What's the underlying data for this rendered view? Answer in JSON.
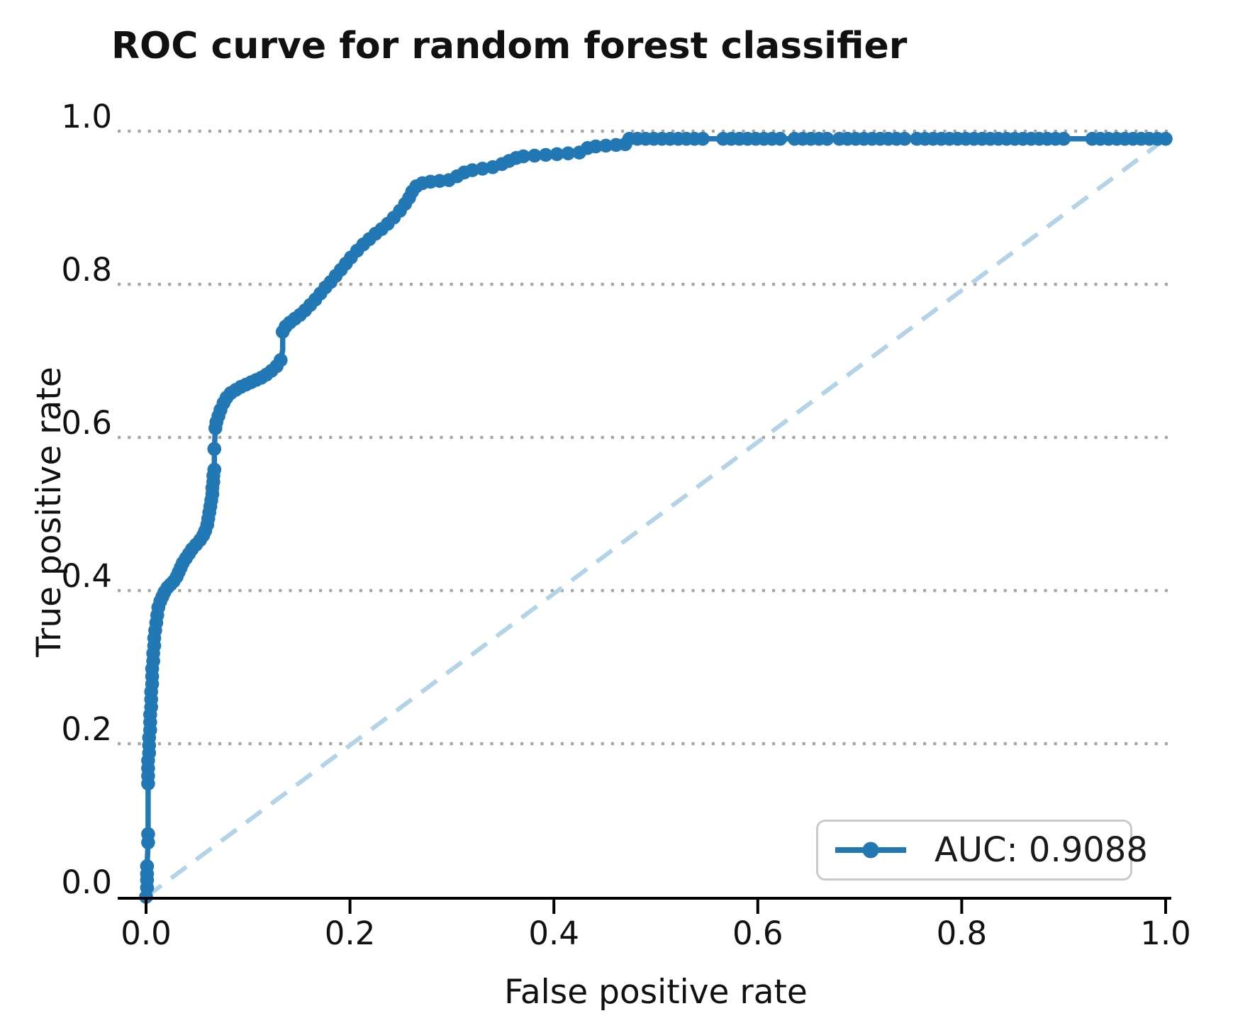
{
  "chart_data": {
    "type": "line",
    "subtype": "roc_curve",
    "title": "ROC curve for random forest classifier",
    "xlabel": "False positive rate",
    "ylabel": "True positive rate",
    "x_tick_labels": [
      "0.0",
      "0.2",
      "0.4",
      "0.6",
      "0.8",
      "1.0"
    ],
    "x_tick_values": [
      0,
      0.2,
      0.4,
      0.6,
      0.8,
      1.0
    ],
    "y_tick_labels": [
      "0.0",
      "0.2",
      "0.4",
      "0.6",
      "0.8",
      "1.0"
    ],
    "y_tick_values": [
      0,
      0.2,
      0.4,
      0.6,
      0.8,
      1.0
    ],
    "xlim": [
      -0.028,
      1.005
    ],
    "ylim": [
      0,
      1.0
    ],
    "grid": "horizontal dotted",
    "legend": {
      "label": "AUC: 0.9088",
      "position": "lower right"
    },
    "auc": 0.9088,
    "colors": {
      "roc_curve": "#2277b5",
      "chance_line": "#b3d3e9",
      "grid": "#a6a6a6",
      "axis": "#000000",
      "text": "#1a1a1a",
      "legend_border": "#c9c9c9",
      "background": "#ffffff"
    },
    "series": [
      {
        "name": "AUC: 0.9088",
        "kind": "roc",
        "marker": "circle",
        "points": [
          [
            0.0,
            0.0,
            1
          ],
          [
            0.001,
            0.012,
            1
          ],
          [
            0.001,
            0.022,
            1
          ],
          [
            0.001,
            0.03,
            1
          ],
          [
            0.001,
            0.04,
            1
          ],
          [
            0.002,
            0.071,
            1
          ],
          [
            0.002,
            0.082,
            1
          ],
          [
            0.002,
            0.148,
            1
          ],
          [
            0.002,
            0.158,
            1
          ],
          [
            0.002,
            0.168,
            1
          ],
          [
            0.002,
            0.178,
            1
          ],
          [
            0.003,
            0.188,
            1
          ],
          [
            0.003,
            0.198,
            1
          ],
          [
            0.003,
            0.208,
            1
          ],
          [
            0.004,
            0.218,
            1
          ],
          [
            0.004,
            0.228,
            1
          ],
          [
            0.004,
            0.238,
            1
          ],
          [
            0.005,
            0.248,
            1
          ],
          [
            0.005,
            0.258,
            1
          ],
          [
            0.005,
            0.268,
            1
          ],
          [
            0.006,
            0.278,
            1
          ],
          [
            0.006,
            0.288,
            1
          ],
          [
            0.006,
            0.298,
            1
          ],
          [
            0.007,
            0.308,
            1
          ],
          [
            0.007,
            0.318,
            1
          ],
          [
            0.008,
            0.328,
            1
          ],
          [
            0.008,
            0.338,
            1
          ],
          [
            0.009,
            0.348,
            1
          ],
          [
            0.01,
            0.358,
            1
          ],
          [
            0.011,
            0.368,
            1
          ],
          [
            0.012,
            0.378,
            1
          ],
          [
            0.014,
            0.386,
            1
          ],
          [
            0.016,
            0.392,
            1
          ],
          [
            0.018,
            0.398,
            1
          ],
          [
            0.021,
            0.404,
            1
          ],
          [
            0.024,
            0.408,
            1
          ],
          [
            0.027,
            0.412,
            1
          ],
          [
            0.03,
            0.418,
            1
          ],
          [
            0.032,
            0.424,
            1
          ],
          [
            0.034,
            0.43,
            1
          ],
          [
            0.036,
            0.436,
            1
          ],
          [
            0.039,
            0.442,
            1
          ],
          [
            0.042,
            0.448,
            1
          ],
          [
            0.045,
            0.454,
            1
          ],
          [
            0.049,
            0.46,
            1
          ],
          [
            0.053,
            0.466,
            1
          ],
          [
            0.056,
            0.472,
            1
          ],
          [
            0.058,
            0.478,
            1
          ],
          [
            0.06,
            0.486,
            1
          ],
          [
            0.061,
            0.494,
            1
          ],
          [
            0.062,
            0.502,
            1
          ],
          [
            0.063,
            0.51,
            1
          ],
          [
            0.064,
            0.518,
            1
          ],
          [
            0.065,
            0.526,
            1
          ],
          [
            0.065,
            0.534,
            1
          ],
          [
            0.066,
            0.542,
            1
          ],
          [
            0.066,
            0.55,
            1
          ],
          [
            0.067,
            0.558,
            1
          ],
          [
            0.067,
            0.585,
            1
          ],
          [
            0.068,
            0.612,
            1
          ],
          [
            0.069,
            0.62,
            1
          ],
          [
            0.071,
            0.628,
            1
          ],
          [
            0.073,
            0.636,
            1
          ],
          [
            0.076,
            0.645,
            1
          ],
          [
            0.079,
            0.652,
            1
          ],
          [
            0.083,
            0.658,
            1
          ],
          [
            0.088,
            0.662,
            1
          ],
          [
            0.093,
            0.666,
            1
          ],
          [
            0.098,
            0.669,
            1
          ],
          [
            0.103,
            0.672,
            1
          ],
          [
            0.108,
            0.675,
            1
          ],
          [
            0.113,
            0.678,
            1
          ],
          [
            0.118,
            0.682,
            1
          ],
          [
            0.123,
            0.687,
            1
          ],
          [
            0.128,
            0.693,
            1
          ],
          [
            0.132,
            0.701,
            1
          ],
          [
            0.134,
            0.714,
            0
          ],
          [
            0.134,
            0.738,
            1
          ],
          [
            0.137,
            0.745,
            1
          ],
          [
            0.141,
            0.75,
            1
          ],
          [
            0.146,
            0.755,
            1
          ],
          [
            0.151,
            0.76,
            1
          ],
          [
            0.156,
            0.766,
            1
          ],
          [
            0.161,
            0.773,
            1
          ],
          [
            0.166,
            0.78,
            1
          ],
          [
            0.171,
            0.788,
            1
          ],
          [
            0.176,
            0.796,
            1
          ],
          [
            0.181,
            0.803,
            1
          ],
          [
            0.186,
            0.811,
            1
          ],
          [
            0.191,
            0.819,
            1
          ],
          [
            0.196,
            0.827,
            1
          ],
          [
            0.201,
            0.835,
            1
          ],
          [
            0.207,
            0.844,
            1
          ],
          [
            0.213,
            0.852,
            1
          ],
          [
            0.219,
            0.859,
            1
          ],
          [
            0.225,
            0.866,
            1
          ],
          [
            0.231,
            0.872,
            1
          ],
          [
            0.237,
            0.879,
            1
          ],
          [
            0.243,
            0.887,
            1
          ],
          [
            0.249,
            0.896,
            1
          ],
          [
            0.254,
            0.905,
            1
          ],
          [
            0.258,
            0.913,
            1
          ],
          [
            0.261,
            0.921,
            1
          ],
          [
            0.265,
            0.928,
            1
          ],
          [
            0.271,
            0.932,
            1
          ],
          [
            0.279,
            0.934,
            1
          ],
          [
            0.288,
            0.935,
            1
          ],
          [
            0.297,
            0.936,
            1
          ],
          [
            0.305,
            0.941,
            1
          ],
          [
            0.312,
            0.946,
            1
          ],
          [
            0.32,
            0.949,
            1
          ],
          [
            0.33,
            0.951,
            1
          ],
          [
            0.34,
            0.953,
            1
          ],
          [
            0.349,
            0.957,
            1
          ],
          [
            0.356,
            0.961,
            1
          ],
          [
            0.363,
            0.965,
            1
          ],
          [
            0.37,
            0.967,
            1
          ],
          [
            0.381,
            0.968,
            1
          ],
          [
            0.392,
            0.969,
            1
          ],
          [
            0.403,
            0.97,
            1
          ],
          [
            0.414,
            0.971,
            1
          ],
          [
            0.425,
            0.972,
            1
          ],
          [
            0.433,
            0.978,
            1
          ],
          [
            0.441,
            0.98,
            1
          ],
          [
            0.451,
            0.981,
            1
          ],
          [
            0.461,
            0.982,
            1
          ],
          [
            0.47,
            0.983,
            1
          ],
          [
            0.474,
            0.99,
            1
          ],
          [
            0.482,
            0.99,
            1
          ],
          [
            0.49,
            0.99,
            1
          ],
          [
            0.498,
            0.99,
            1
          ],
          [
            0.506,
            0.99,
            1
          ],
          [
            0.514,
            0.99,
            1
          ],
          [
            0.522,
            0.99,
            1
          ],
          [
            0.53,
            0.99,
            1
          ],
          [
            0.538,
            0.99,
            1
          ],
          [
            0.546,
            0.99,
            1
          ],
          [
            0.566,
            0.99,
            1
          ],
          [
            0.574,
            0.99,
            1
          ],
          [
            0.582,
            0.99,
            1
          ],
          [
            0.59,
            0.99,
            1
          ],
          [
            0.598,
            0.99,
            1
          ],
          [
            0.606,
            0.99,
            1
          ],
          [
            0.614,
            0.99,
            1
          ],
          [
            0.622,
            0.99,
            1
          ],
          [
            0.636,
            0.99,
            1
          ],
          [
            0.644,
            0.99,
            1
          ],
          [
            0.652,
            0.99,
            1
          ],
          [
            0.66,
            0.99,
            1
          ],
          [
            0.668,
            0.99,
            1
          ],
          [
            0.68,
            0.99,
            1
          ],
          [
            0.688,
            0.99,
            1
          ],
          [
            0.696,
            0.99,
            1
          ],
          [
            0.704,
            0.99,
            1
          ],
          [
            0.712,
            0.99,
            1
          ],
          [
            0.72,
            0.99,
            1
          ],
          [
            0.728,
            0.99,
            1
          ],
          [
            0.736,
            0.99,
            1
          ],
          [
            0.744,
            0.99,
            1
          ],
          [
            0.756,
            0.99,
            1
          ],
          [
            0.764,
            0.99,
            1
          ],
          [
            0.772,
            0.99,
            1
          ],
          [
            0.78,
            0.99,
            1
          ],
          [
            0.788,
            0.99,
            1
          ],
          [
            0.796,
            0.99,
            1
          ],
          [
            0.804,
            0.99,
            1
          ],
          [
            0.812,
            0.99,
            1
          ],
          [
            0.82,
            0.99,
            1
          ],
          [
            0.828,
            0.99,
            1
          ],
          [
            0.836,
            0.99,
            1
          ],
          [
            0.844,
            0.99,
            1
          ],
          [
            0.852,
            0.99,
            1
          ],
          [
            0.86,
            0.99,
            1
          ],
          [
            0.868,
            0.99,
            1
          ],
          [
            0.876,
            0.99,
            1
          ],
          [
            0.884,
            0.99,
            1
          ],
          [
            0.892,
            0.99,
            1
          ],
          [
            0.9,
            0.99,
            1
          ],
          [
            0.928,
            0.99,
            1
          ],
          [
            0.936,
            0.99,
            1
          ],
          [
            0.944,
            0.99,
            1
          ],
          [
            0.952,
            0.99,
            1
          ],
          [
            0.96,
            0.99,
            1
          ],
          [
            0.968,
            0.99,
            1
          ],
          [
            0.976,
            0.99,
            1
          ],
          [
            0.984,
            0.99,
            1
          ],
          [
            0.992,
            0.99,
            1
          ],
          [
            1.0,
            0.99,
            1
          ]
        ]
      },
      {
        "name": "chance diagonal",
        "kind": "reference",
        "style": "dashed",
        "points": [
          [
            0,
            0
          ],
          [
            1.0,
            0.99
          ]
        ]
      }
    ]
  }
}
